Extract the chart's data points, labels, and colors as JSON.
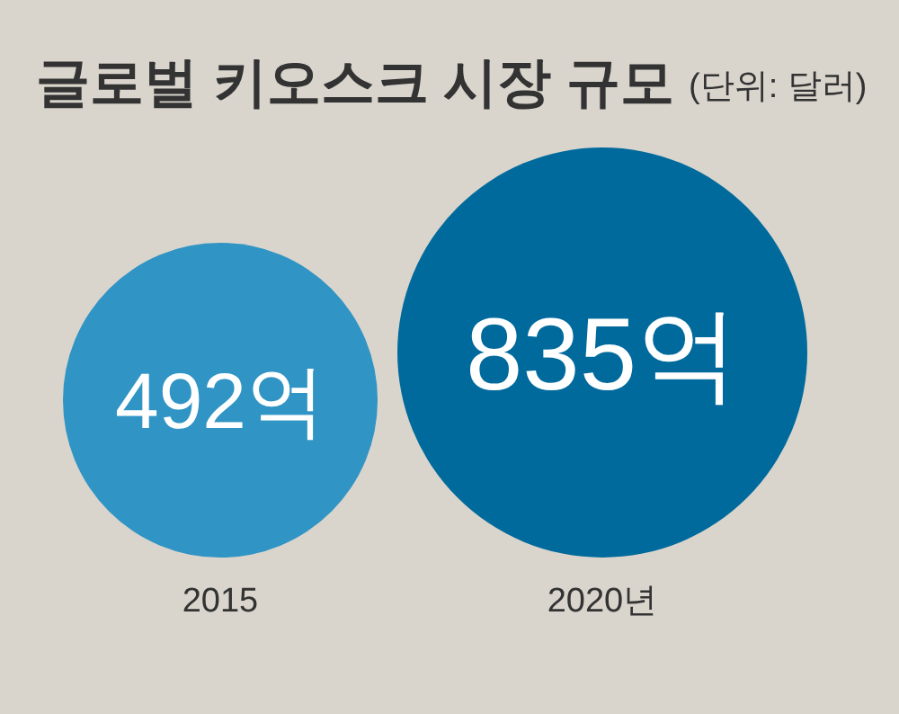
{
  "chart_data": {
    "type": "bubble",
    "title": "글로벌 키오스크 시장 규모",
    "subtitle": "(단위: 달러)",
    "categories": [
      "2015",
      "2020년"
    ],
    "values": [
      492,
      835
    ],
    "value_labels": [
      "492억",
      "835억"
    ],
    "colors": [
      "#3094c4",
      "#016a9c"
    ]
  }
}
